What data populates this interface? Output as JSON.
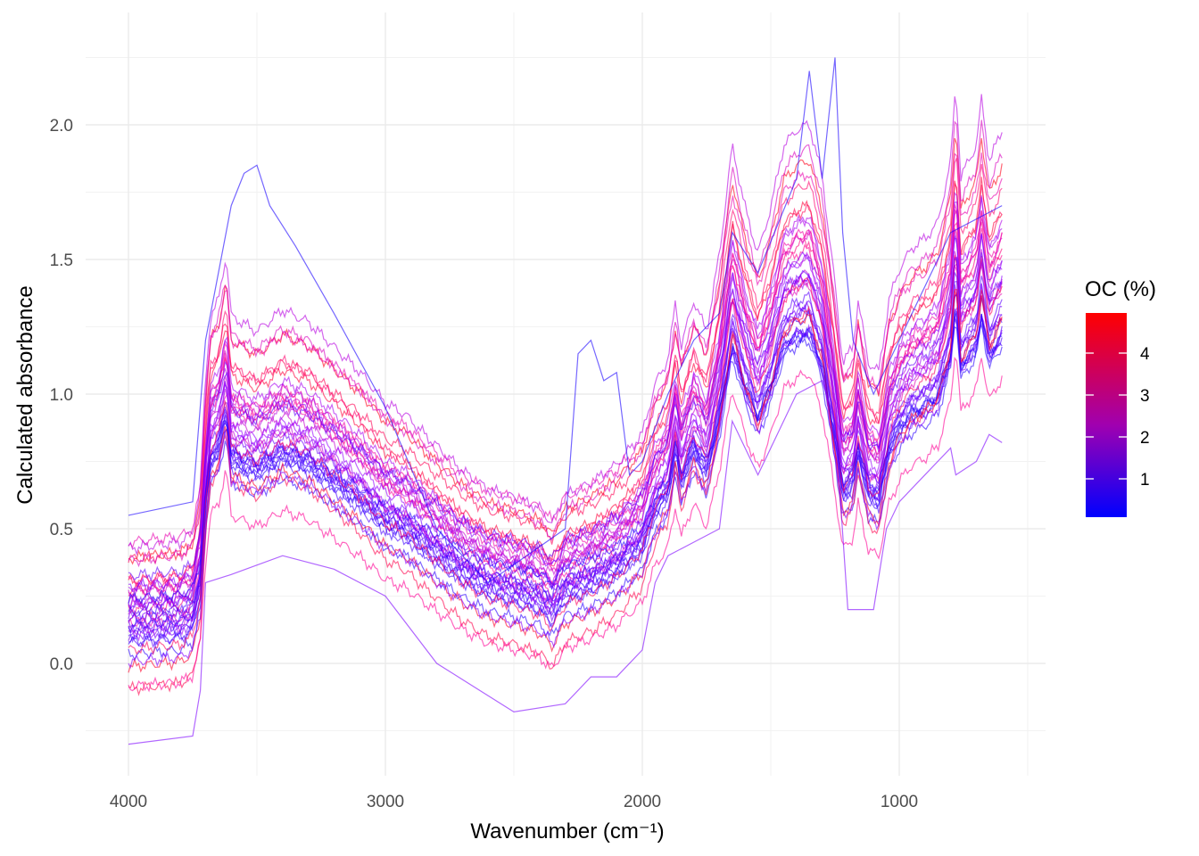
{
  "chart_data": {
    "type": "line",
    "xlabel": "Wavenumber (cm⁻¹)",
    "ylabel": "Calculated absorbance",
    "xlim": [
      4167,
      431
    ],
    "ylim": [
      -0.417,
      2.417
    ],
    "x_reversed": true,
    "xticks": [
      {
        "v": 4000,
        "label": "4000"
      },
      {
        "v": 3000,
        "label": "3000"
      },
      {
        "v": 2000,
        "label": "2000"
      },
      {
        "v": 1000,
        "label": "1000"
      }
    ],
    "yticks": [
      {
        "v": 0,
        "label": "0.0"
      },
      {
        "v": 0.5,
        "label": "0.5"
      },
      {
        "v": 1,
        "label": "1.0"
      },
      {
        "v": 1.5,
        "label": "1.5"
      },
      {
        "v": 2,
        "label": "2.0"
      }
    ],
    "grid": true,
    "legend": {
      "title": "OC (%)",
      "position": "right",
      "range": [
        0.08,
        4.9
      ],
      "ticks": [
        {
          "v": 1,
          "label": "1"
        },
        {
          "v": 2,
          "label": "2"
        },
        {
          "v": 3,
          "label": "3"
        },
        {
          "v": 4,
          "label": "4"
        }
      ],
      "low_color": "#0000ff",
      "high_color": "#ff0000"
    },
    "wavenumbers": [
      4000,
      3800,
      3750,
      3720,
      3700,
      3680,
      3650,
      3620,
      3600,
      3500,
      3400,
      3300,
      3200,
      3100,
      3000,
      2920,
      2850,
      2700,
      2600,
      2520,
      2400,
      2350,
      2300,
      2200,
      2100,
      2000,
      1950,
      1900,
      1870,
      1850,
      1800,
      1750,
      1700,
      1650,
      1600,
      1550,
      1500,
      1450,
      1400,
      1350,
      1300,
      1250,
      1220,
      1180,
      1160,
      1120,
      1080,
      1040,
      1000,
      950,
      900,
      850,
      800,
      780,
      760,
      700,
      680,
      650,
      600
    ],
    "mean_absorbance": [
      0.25,
      0.27,
      0.3,
      0.45,
      0.8,
      1.0,
      1.05,
      1.2,
      1.0,
      0.95,
      1.02,
      0.98,
      0.9,
      0.82,
      0.72,
      0.68,
      0.62,
      0.5,
      0.44,
      0.42,
      0.38,
      0.33,
      0.42,
      0.46,
      0.52,
      0.62,
      0.78,
      0.86,
      1.05,
      0.9,
      1.05,
      0.95,
      1.2,
      1.55,
      1.35,
      1.2,
      1.35,
      1.55,
      1.6,
      1.62,
      1.45,
      1.1,
      0.85,
      0.9,
      1.05,
      0.85,
      0.82,
      1.05,
      1.15,
      1.22,
      1.25,
      1.3,
      1.5,
      1.75,
      1.45,
      1.55,
      1.7,
      1.5,
      1.6
    ],
    "samples_oc_offset_gain": [
      [
        4.6,
        0.12,
        1.08
      ],
      [
        4.2,
        0.05,
        1.02
      ],
      [
        3.9,
        0.15,
        0.95
      ],
      [
        3.6,
        0.0,
        1.1
      ],
      [
        3.4,
        -0.05,
        1.0
      ],
      [
        3.2,
        0.08,
        0.9
      ],
      [
        3.0,
        -0.1,
        1.05
      ],
      [
        2.9,
        0.02,
        0.98
      ],
      [
        2.7,
        -0.08,
        0.92
      ],
      [
        2.6,
        0.1,
        1.12
      ],
      [
        2.5,
        -0.03,
        1.0
      ],
      [
        2.4,
        0.05,
        0.85
      ],
      [
        2.3,
        -0.12,
        0.97
      ],
      [
        2.2,
        0.0,
        0.93
      ],
      [
        2.1,
        -0.06,
        1.06
      ],
      [
        2.0,
        0.03,
        1.0
      ],
      [
        1.9,
        -0.15,
        1.02
      ],
      [
        1.8,
        0.0,
        0.88
      ],
      [
        1.7,
        -0.1,
        0.95
      ],
      [
        1.6,
        0.06,
        0.9
      ],
      [
        1.5,
        -0.04,
        0.84
      ],
      [
        1.4,
        -0.12,
        0.9
      ],
      [
        1.3,
        0.02,
        0.8
      ],
      [
        1.2,
        -0.08,
        0.86
      ],
      [
        1.1,
        -0.16,
        0.94
      ],
      [
        1.0,
        -0.02,
        0.78
      ],
      [
        0.9,
        -0.1,
        0.82
      ],
      [
        0.8,
        0.0,
        0.75
      ],
      [
        0.7,
        -0.14,
        0.88
      ],
      [
        0.6,
        -0.06,
        0.8
      ],
      [
        0.5,
        -0.18,
        0.85
      ],
      [
        3.8,
        -0.2,
        1.0
      ],
      [
        4.4,
        -0.25,
        0.95
      ],
      [
        2.8,
        0.2,
        1.0
      ],
      [
        1.2,
        0.12,
        0.82
      ],
      [
        4.0,
        -0.35,
        1.02
      ],
      [
        1.6,
        -0.22,
        0.9
      ],
      [
        3.1,
        -0.3,
        0.85
      ],
      [
        2.2,
        0.14,
        1.15
      ],
      [
        0.4,
        0.06,
        0.72
      ]
    ],
    "outliers": [
      {
        "oc": 1.5,
        "points": [
          [
            4000,
            -0.3
          ],
          [
            3750,
            -0.27
          ],
          [
            3720,
            -0.1
          ],
          [
            3700,
            0.3
          ],
          [
            3600,
            0.33
          ],
          [
            3400,
            0.4
          ],
          [
            3200,
            0.35
          ],
          [
            3000,
            0.25
          ],
          [
            2800,
            0.0
          ],
          [
            2500,
            -0.18
          ],
          [
            2300,
            -0.15
          ],
          [
            2200,
            -0.05
          ],
          [
            2100,
            -0.05
          ],
          [
            2000,
            0.05
          ],
          [
            1950,
            0.3
          ],
          [
            1900,
            0.4
          ],
          [
            1800,
            0.45
          ],
          [
            1700,
            0.5
          ],
          [
            1650,
            0.9
          ],
          [
            1550,
            0.7
          ],
          [
            1400,
            1.0
          ],
          [
            1300,
            1.05
          ],
          [
            1250,
            0.9
          ],
          [
            1200,
            0.2
          ],
          [
            1100,
            0.2
          ],
          [
            1050,
            0.5
          ],
          [
            1000,
            0.6
          ],
          [
            900,
            0.7
          ],
          [
            800,
            0.8
          ],
          [
            780,
            0.7
          ],
          [
            700,
            0.75
          ],
          [
            650,
            0.85
          ],
          [
            600,
            0.82
          ]
        ]
      },
      {
        "oc": 0.3,
        "points": [
          [
            4000,
            0.55
          ],
          [
            3750,
            0.6
          ],
          [
            3700,
            1.2
          ],
          [
            3600,
            1.7
          ],
          [
            3550,
            1.82
          ],
          [
            3500,
            1.85
          ],
          [
            3450,
            1.7
          ],
          [
            3350,
            1.55
          ],
          [
            3200,
            1.3
          ],
          [
            3000,
            0.95
          ],
          [
            2800,
            0.5
          ],
          [
            2600,
            0.3
          ],
          [
            2300,
            0.5
          ],
          [
            2250,
            1.15
          ],
          [
            2200,
            1.2
          ],
          [
            2150,
            1.05
          ],
          [
            2100,
            1.08
          ],
          [
            2050,
            0.7
          ],
          [
            2000,
            0.75
          ],
          [
            1900,
            1.0
          ],
          [
            1800,
            1.2
          ],
          [
            1700,
            1.3
          ],
          [
            1650,
            1.6
          ],
          [
            1550,
            1.45
          ],
          [
            1400,
            1.8
          ],
          [
            1350,
            2.2
          ],
          [
            1300,
            1.8
          ],
          [
            1250,
            2.25
          ],
          [
            1220,
            1.6
          ],
          [
            1180,
            1.2
          ],
          [
            1100,
            1.0
          ],
          [
            1000,
            1.2
          ],
          [
            800,
            1.6
          ],
          [
            600,
            1.7
          ]
        ]
      }
    ]
  }
}
